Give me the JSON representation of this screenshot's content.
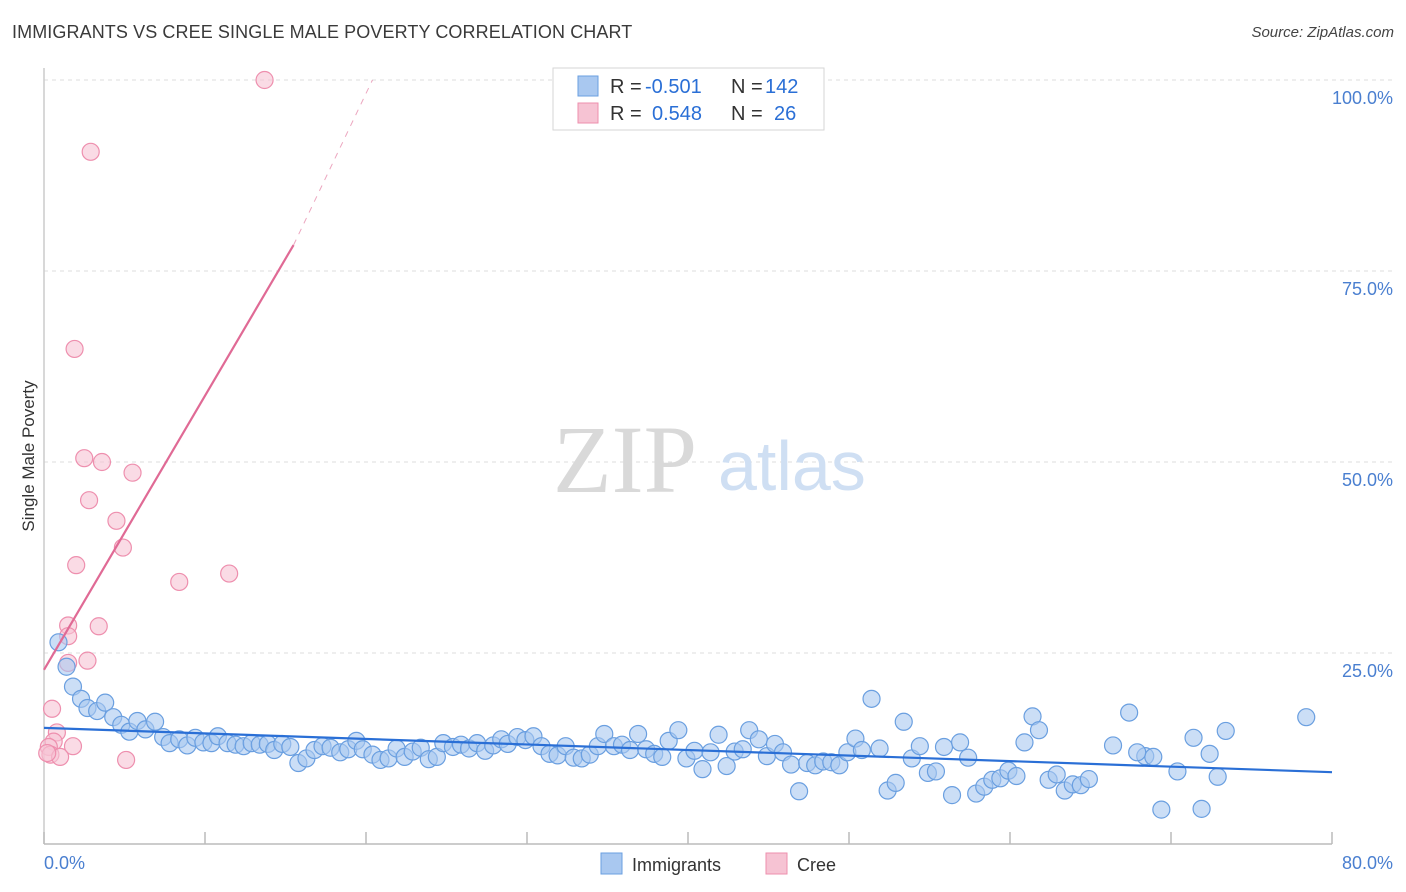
{
  "header": {
    "title": "IMMIGRANTS VS CREE SINGLE MALE POVERTY CORRELATION CHART",
    "source": "Source: ZipAtlas.com"
  },
  "watermark": {
    "zip": "ZIP",
    "atlas": "atlas"
  },
  "colors": {
    "immigrants_fill": "#a9c8f0",
    "immigrants_stroke": "#6a9fe0",
    "immigrants_line": "#2a6fd6",
    "cree_fill": "#f6c3d3",
    "cree_stroke": "#ee8fae",
    "cree_line": "#e06a95",
    "tick_text": "#4a7fd0",
    "grid": "#dddddd"
  },
  "legend": {
    "immigrants": {
      "r_label": "R =",
      "r_value": "-0.501",
      "n_label": "N =",
      "n_value": "142"
    },
    "cree": {
      "r_label": "R =",
      "r_value": "0.548",
      "n_label": "N =",
      "n_value": "26"
    }
  },
  "chart_data": {
    "type": "scatter",
    "title": "IMMIGRANTS VS CREE SINGLE MALE POVERTY CORRELATION CHART",
    "xlabel": "",
    "ylabel": "Single Male Poverty",
    "xlim": [
      0,
      80
    ],
    "ylim": [
      0,
      100
    ],
    "x_tick_labels": [
      "0.0%",
      "80.0%"
    ],
    "y_ticks": [
      25,
      50,
      75,
      100
    ],
    "y_tick_labels": [
      "25.0%",
      "50.0%",
      "75.0%",
      "100.0%"
    ],
    "grid": true,
    "legend_bottom": [
      "Immigrants",
      "Cree"
    ],
    "series": [
      {
        "name": "Immigrants",
        "r": -0.501,
        "n": 142,
        "trend": {
          "x0": 0,
          "y0": 15.2,
          "x1": 80,
          "y1": 9.4
        },
        "points": [
          [
            0.9,
            26.4
          ],
          [
            1.4,
            23.2
          ],
          [
            1.8,
            20.6
          ],
          [
            2.3,
            19.0
          ],
          [
            2.7,
            17.8
          ],
          [
            3.3,
            17.4
          ],
          [
            3.8,
            18.5
          ],
          [
            4.3,
            16.6
          ],
          [
            4.8,
            15.6
          ],
          [
            5.3,
            14.7
          ],
          [
            5.8,
            16.1
          ],
          [
            6.3,
            15.0
          ],
          [
            6.9,
            16.0
          ],
          [
            7.4,
            14.0
          ],
          [
            7.8,
            13.2
          ],
          [
            8.4,
            13.7
          ],
          [
            8.9,
            12.9
          ],
          [
            9.4,
            13.9
          ],
          [
            9.9,
            13.3
          ],
          [
            10.4,
            13.2
          ],
          [
            10.8,
            14.1
          ],
          [
            11.4,
            13.2
          ],
          [
            11.9,
            13.0
          ],
          [
            12.4,
            12.8
          ],
          [
            12.9,
            13.2
          ],
          [
            13.4,
            13.0
          ],
          [
            13.9,
            13.1
          ],
          [
            14.3,
            12.3
          ],
          [
            14.8,
            13.1
          ],
          [
            15.3,
            12.7
          ],
          [
            15.8,
            10.6
          ],
          [
            16.3,
            11.2
          ],
          [
            16.8,
            12.3
          ],
          [
            17.3,
            12.8
          ],
          [
            17.8,
            12.6
          ],
          [
            18.4,
            12.0
          ],
          [
            18.9,
            12.4
          ],
          [
            19.4,
            13.5
          ],
          [
            19.8,
            12.4
          ],
          [
            20.4,
            11.7
          ],
          [
            20.9,
            11.0
          ],
          [
            21.4,
            11.2
          ],
          [
            21.9,
            12.5
          ],
          [
            22.4,
            11.4
          ],
          [
            22.9,
            12.1
          ],
          [
            23.4,
            12.6
          ],
          [
            23.9,
            11.1
          ],
          [
            24.4,
            11.4
          ],
          [
            24.8,
            13.2
          ],
          [
            25.4,
            12.7
          ],
          [
            25.9,
            13.0
          ],
          [
            26.4,
            12.5
          ],
          [
            26.9,
            13.2
          ],
          [
            27.4,
            12.2
          ],
          [
            27.9,
            12.9
          ],
          [
            28.4,
            13.7
          ],
          [
            28.8,
            13.1
          ],
          [
            29.4,
            14.0
          ],
          [
            29.9,
            13.6
          ],
          [
            30.4,
            14.1
          ],
          [
            30.9,
            12.8
          ],
          [
            31.4,
            11.8
          ],
          [
            31.9,
            11.6
          ],
          [
            32.4,
            12.8
          ],
          [
            32.9,
            11.3
          ],
          [
            33.4,
            11.2
          ],
          [
            33.9,
            11.7
          ],
          [
            34.4,
            12.8
          ],
          [
            34.8,
            14.4
          ],
          [
            35.4,
            12.8
          ],
          [
            35.9,
            13.0
          ],
          [
            36.4,
            12.3
          ],
          [
            36.9,
            14.4
          ],
          [
            37.4,
            12.4
          ],
          [
            37.9,
            11.8
          ],
          [
            38.4,
            11.4
          ],
          [
            38.8,
            13.5
          ],
          [
            39.4,
            14.9
          ],
          [
            39.9,
            11.2
          ],
          [
            40.4,
            12.2
          ],
          [
            40.9,
            9.8
          ],
          [
            41.4,
            12.0
          ],
          [
            41.9,
            14.3
          ],
          [
            42.4,
            10.2
          ],
          [
            42.9,
            12.1
          ],
          [
            43.4,
            12.4
          ],
          [
            43.8,
            14.9
          ],
          [
            44.4,
            13.7
          ],
          [
            44.9,
            11.5
          ],
          [
            45.4,
            13.1
          ],
          [
            45.9,
            12.0
          ],
          [
            46.4,
            10.4
          ],
          [
            46.9,
            6.9
          ],
          [
            47.4,
            10.6
          ],
          [
            47.9,
            10.3
          ],
          [
            48.4,
            10.8
          ],
          [
            48.9,
            10.7
          ],
          [
            49.4,
            10.3
          ],
          [
            49.9,
            12.0
          ],
          [
            50.4,
            13.8
          ],
          [
            50.8,
            12.3
          ],
          [
            51.4,
            19.0
          ],
          [
            51.9,
            12.5
          ],
          [
            52.4,
            7.0
          ],
          [
            52.9,
            8.0
          ],
          [
            53.4,
            16.0
          ],
          [
            53.9,
            11.2
          ],
          [
            54.4,
            12.8
          ],
          [
            54.9,
            9.3
          ],
          [
            55.4,
            9.5
          ],
          [
            55.9,
            12.7
          ],
          [
            56.4,
            6.4
          ],
          [
            56.9,
            13.3
          ],
          [
            57.4,
            11.3
          ],
          [
            57.9,
            6.6
          ],
          [
            58.4,
            7.5
          ],
          [
            58.9,
            8.4
          ],
          [
            59.4,
            8.6
          ],
          [
            59.9,
            9.6
          ],
          [
            60.4,
            8.9
          ],
          [
            60.9,
            13.3
          ],
          [
            61.4,
            16.7
          ],
          [
            61.8,
            14.9
          ],
          [
            62.4,
            8.4
          ],
          [
            62.9,
            9.1
          ],
          [
            63.4,
            7.0
          ],
          [
            63.9,
            7.8
          ],
          [
            64.4,
            7.7
          ],
          [
            64.9,
            8.5
          ],
          [
            66.4,
            12.9
          ],
          [
            67.4,
            17.2
          ],
          [
            68.4,
            11.5
          ],
          [
            68.9,
            11.4
          ],
          [
            69.4,
            4.5
          ],
          [
            70.4,
            9.5
          ],
          [
            71.4,
            13.9
          ],
          [
            71.9,
            4.6
          ],
          [
            72.4,
            11.8
          ],
          [
            72.9,
            8.8
          ],
          [
            73.4,
            14.8
          ],
          [
            78.4,
            16.6
          ],
          [
            67.9,
            12.0
          ]
        ]
      },
      {
        "name": "Cree",
        "r": 0.548,
        "n": 26,
        "trend": {
          "x0": 0,
          "y0": 22.8,
          "x1": 15.5,
          "y1": 78.4
        },
        "trend_dashed": {
          "x0": 15.5,
          "y0": 78.4,
          "x1": 20.4,
          "y1": 100
        },
        "points": [
          [
            13.7,
            100.0
          ],
          [
            2.9,
            90.6
          ],
          [
            1.9,
            64.8
          ],
          [
            2.5,
            50.5
          ],
          [
            3.6,
            50.0
          ],
          [
            5.5,
            48.6
          ],
          [
            2.8,
            45.0
          ],
          [
            4.5,
            42.3
          ],
          [
            4.9,
            38.8
          ],
          [
            2.0,
            36.5
          ],
          [
            8.4,
            34.3
          ],
          [
            11.5,
            35.4
          ],
          [
            3.4,
            28.5
          ],
          [
            1.5,
            28.6
          ],
          [
            1.5,
            27.2
          ],
          [
            2.7,
            24.0
          ],
          [
            1.5,
            23.7
          ],
          [
            0.5,
            17.7
          ],
          [
            0.8,
            14.6
          ],
          [
            0.6,
            13.4
          ],
          [
            1.8,
            12.8
          ],
          [
            0.3,
            12.7
          ],
          [
            0.4,
            11.7
          ],
          [
            1.0,
            11.4
          ],
          [
            5.1,
            11.0
          ],
          [
            0.2,
            11.9
          ]
        ]
      }
    ]
  }
}
